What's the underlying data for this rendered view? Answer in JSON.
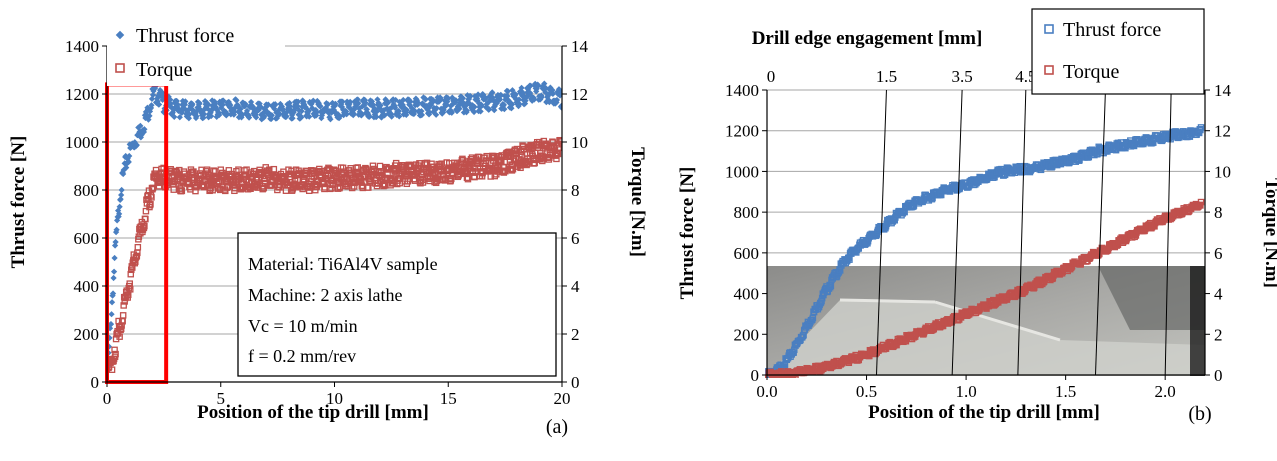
{
  "chart_data": [
    {
      "type": "scatter",
      "panel_label": "(a)",
      "xlabel": "Position of the tip drill [mm]",
      "ylabel": "Thrust force [N]",
      "y2label": "Torque [N.m]",
      "xlim": [
        0,
        20
      ],
      "ylim": [
        0,
        1400
      ],
      "y2lim": [
        0,
        14
      ],
      "x_ticks": [
        "0",
        "5",
        "10",
        "15",
        "20"
      ],
      "y_ticks": [
        "0",
        "200",
        "400",
        "600",
        "800",
        "1000",
        "1200",
        "1400"
      ],
      "y2_ticks": [
        "0",
        "2",
        "4",
        "6",
        "8",
        "10",
        "12",
        "14"
      ],
      "grid": "horizontal",
      "legend_position": "top-left",
      "colors": {
        "thrust": "#4a7fc1",
        "torque": "#c0504d",
        "highlight": "#ff0000"
      },
      "series": [
        {
          "name": "Thrust force",
          "axis": "left",
          "marker": "diamond",
          "x": [
            0,
            0.2,
            0.4,
            0.6,
            0.8,
            1.0,
            1.2,
            1.5,
            1.8,
            2.0,
            2.2,
            2.5,
            3,
            4,
            5,
            6,
            7,
            8,
            9,
            10,
            11,
            12,
            13,
            14,
            15,
            16,
            17,
            18,
            18.5,
            19,
            19.5,
            20
          ],
          "y": [
            0,
            300,
            600,
            800,
            900,
            960,
            1000,
            1050,
            1120,
            1190,
            1200,
            1160,
            1140,
            1130,
            1140,
            1140,
            1120,
            1130,
            1140,
            1130,
            1140,
            1140,
            1140,
            1150,
            1150,
            1160,
            1170,
            1180,
            1200,
            1210,
            1200,
            1180
          ]
        },
        {
          "name": "Torque",
          "axis": "right",
          "marker": "square",
          "x": [
            0,
            0.3,
            0.6,
            0.9,
            1.2,
            1.5,
            1.8,
            2.0,
            2.2,
            2.5,
            3,
            4,
            5,
            6,
            7,
            8,
            9,
            10,
            11,
            12,
            13,
            14,
            15,
            16,
            17,
            18,
            18.5,
            19,
            19.5,
            20
          ],
          "y": [
            0,
            1.2,
            2.5,
            3.8,
            5.0,
            6.3,
            7.4,
            8.2,
            8.5,
            8.5,
            8.4,
            8.4,
            8.4,
            8.4,
            8.5,
            8.4,
            8.4,
            8.5,
            8.5,
            8.6,
            8.7,
            8.7,
            8.8,
            8.9,
            9.0,
            9.3,
            9.5,
            9.6,
            9.7,
            9.7
          ]
        }
      ],
      "highlight_box": {
        "x": [
          0,
          2.6
        ],
        "y": [
          0,
          1240
        ]
      },
      "annotation": [
        "Material: Ti6Al4V sample",
        "Machine: 2 axis lathe",
        "Vc = 10 m/min",
        "f = 0.2 mm/rev"
      ]
    },
    {
      "type": "scatter",
      "panel_label": "(b)",
      "xlabel": "Position of the tip drill [mm]",
      "ylabel": "Thrust force [N]",
      "y2label": "Torque [N.m]",
      "x2label": "Drill edge engagement [mm]",
      "xlim": [
        0,
        2.2
      ],
      "ylim": [
        0,
        1400
      ],
      "y2lim": [
        0,
        14
      ],
      "x_ticks": [
        "0.0",
        "0.5",
        "1.0",
        "1.5",
        "2.0"
      ],
      "y_ticks": [
        "0",
        "200",
        "400",
        "600",
        "800",
        "1000",
        "1200",
        "1400"
      ],
      "y2_ticks": [
        "0",
        "2",
        "4",
        "6",
        "8",
        "10",
        "12",
        "14"
      ],
      "grid": "horizontal",
      "legend_position": "top-right",
      "colors": {
        "thrust": "#4a7fc1",
        "torque": "#c0504d"
      },
      "series": [
        {
          "name": "Thrust force",
          "axis": "left",
          "marker": "square",
          "x": [
            0,
            0.05,
            0.1,
            0.15,
            0.2,
            0.25,
            0.3,
            0.35,
            0.4,
            0.45,
            0.5,
            0.55,
            0.6,
            0.65,
            0.7,
            0.75,
            0.8,
            0.85,
            0.9,
            0.95,
            1.0,
            1.05,
            1.1,
            1.15,
            1.2,
            1.25,
            1.3,
            1.35,
            1.4,
            1.45,
            1.5,
            1.55,
            1.6,
            1.65,
            1.7,
            1.75,
            1.8,
            1.85,
            1.9,
            1.95,
            2.0,
            2.05,
            2.1,
            2.15,
            2.18
          ],
          "y": [
            0,
            20,
            70,
            150,
            240,
            330,
            420,
            500,
            570,
            620,
            660,
            700,
            740,
            780,
            820,
            850,
            870,
            890,
            910,
            920,
            930,
            950,
            970,
            990,
            1000,
            1010,
            1010,
            1020,
            1030,
            1040,
            1050,
            1060,
            1080,
            1100,
            1110,
            1120,
            1130,
            1140,
            1150,
            1160,
            1170,
            1180,
            1180,
            1190,
            1200
          ]
        },
        {
          "name": "Torque",
          "axis": "right",
          "marker": "square",
          "x": [
            0,
            0.1,
            0.2,
            0.3,
            0.4,
            0.5,
            0.6,
            0.7,
            0.8,
            0.9,
            1.0,
            1.1,
            1.2,
            1.3,
            1.4,
            1.5,
            1.6,
            1.7,
            1.8,
            1.9,
            2.0,
            2.1,
            2.18
          ],
          "y": [
            0,
            0.05,
            0.2,
            0.4,
            0.7,
            1.0,
            1.4,
            1.8,
            2.2,
            2.6,
            3.0,
            3.4,
            3.8,
            4.2,
            4.7,
            5.2,
            5.7,
            6.2,
            6.7,
            7.2,
            7.7,
            8.1,
            8.4
          ]
        }
      ],
      "engagement_ticks": [
        "0",
        "1.5",
        "3.5",
        "4.5"
      ],
      "engagement_lines": [
        {
          "top": 0.02,
          "bottom": 0.02
        },
        {
          "top": 0.6,
          "bottom": 0.55
        },
        {
          "top": 0.98,
          "bottom": 0.93
        },
        {
          "top": 1.3,
          "bottom": 1.26
        },
        {
          "top": 1.7,
          "bottom": 1.65
        },
        {
          "top": 2.03,
          "bottom": 2.0
        }
      ]
    }
  ]
}
